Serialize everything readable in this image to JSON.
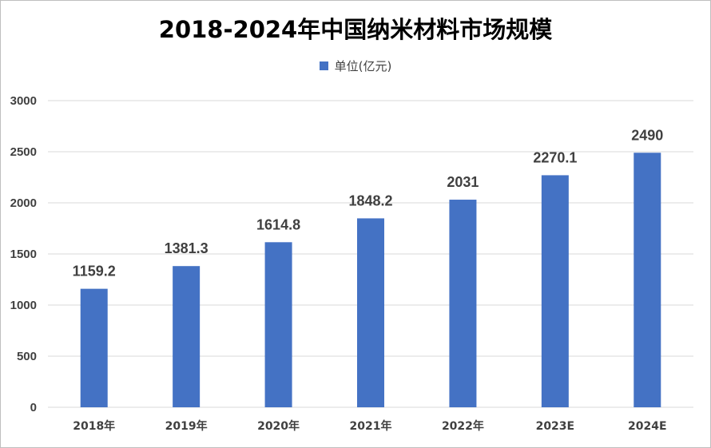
{
  "chart_data": {
    "type": "bar",
    "title": "2018-2024年中国纳米材料市场规模",
    "categories": [
      "2018年",
      "2019年",
      "2020年",
      "2021年",
      "2022年",
      "2023E",
      "2024E"
    ],
    "series": [
      {
        "name": "单位(亿元)",
        "values": [
          1159.2,
          1381.3,
          1614.8,
          1848.2,
          2031,
          2270.1,
          2490
        ]
      }
    ],
    "data_labels": [
      "1159.2",
      "1381.3",
      "1614.8",
      "1848.2",
      "2031",
      "2270.1",
      "2490"
    ],
    "y_ticks": [
      0,
      500,
      1000,
      1500,
      2000,
      2500,
      3000
    ],
    "ylim": [
      0,
      3000
    ],
    "grid": true,
    "legend_position": "top",
    "colors": {
      "bar": "#4472c4",
      "grid": "#d9d9d9",
      "axis_text": "#404040"
    }
  }
}
